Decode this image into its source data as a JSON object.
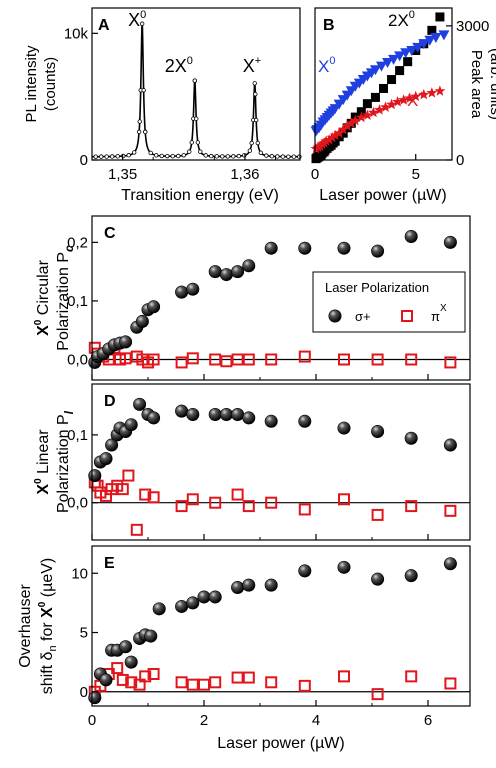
{
  "chart_data": [
    {
      "panel": "A",
      "type": "line",
      "xlabel": "Transition energy (eV)",
      "ylabel": "PL intensity",
      "ylabel2": "(counts)",
      "xticks": [
        "1,35",
        "1,36"
      ],
      "xtick_values": [
        1.35,
        1.36
      ],
      "yticks": [
        "0",
        "10k"
      ],
      "ytick_values": [
        0,
        10000
      ],
      "xlim": [
        1.3475,
        1.3645
      ],
      "ylim": [
        0,
        12000
      ],
      "peaks": [
        {
          "label": "X",
          "sup": "0",
          "x": 1.3516,
          "height": 10500,
          "width": 0.00012
        },
        {
          "label": "2X",
          "sup": "0",
          "x": 1.3559,
          "height": 6000,
          "width": 0.00012
        },
        {
          "label": "X",
          "sup": "+",
          "x": 1.3608,
          "height": 5800,
          "width": 0.00012
        }
      ],
      "baseline": 250
    },
    {
      "panel": "B",
      "type": "scatter",
      "xlabel": "Laser power (µW)",
      "ylabel_right": "Peak area",
      "ylabel_right2": "(arb. units)",
      "xticks": [
        "0",
        "5"
      ],
      "xtick_values": [
        0,
        5
      ],
      "yticks": [
        "0",
        "3000"
      ],
      "ytick_values": [
        0,
        3000
      ],
      "xlim": [
        0,
        6.8
      ],
      "ylim": [
        0,
        3400
      ],
      "series": [
        {
          "name": "2X",
          "sup": "0",
          "color": "#000000",
          "marker": "square",
          "x": [
            0.05,
            0.1,
            0.15,
            0.2,
            0.3,
            0.35,
            0.45,
            0.5,
            0.6,
            0.7,
            0.8,
            0.9,
            1.0,
            1.2,
            1.4,
            1.6,
            1.8,
            2.0,
            2.3,
            2.6,
            3.0,
            3.4,
            3.8,
            4.2,
            4.6,
            5.0,
            5.4,
            5.8,
            6.2
          ],
          "y": [
            30,
            50,
            60,
            80,
            110,
            150,
            180,
            220,
            260,
            300,
            330,
            380,
            420,
            520,
            600,
            720,
            820,
            960,
            1080,
            1260,
            1400,
            1600,
            1800,
            2000,
            2200,
            2450,
            2600,
            2900,
            3200
          ]
        },
        {
          "name": "X",
          "sup": "0",
          "color": "#1f3fe0",
          "marker": "triangle-down",
          "x": [
            0.05,
            0.1,
            0.2,
            0.3,
            0.4,
            0.5,
            0.6,
            0.7,
            0.8,
            0.9,
            1.0,
            1.2,
            1.4,
            1.6,
            1.8,
            2.0,
            2.2,
            2.4,
            2.6,
            2.8,
            3.0,
            3.3,
            3.6,
            3.9,
            4.2,
            4.5,
            4.8,
            5.1,
            5.4,
            5.7,
            6.0,
            6.4
          ],
          "y": [
            650,
            680,
            720,
            780,
            850,
            900,
            950,
            1000,
            1050,
            1100,
            1150,
            1250,
            1350,
            1450,
            1550,
            1650,
            1720,
            1800,
            1880,
            1950,
            2020,
            2100,
            2180,
            2250,
            2330,
            2400,
            2450,
            2520,
            2600,
            2680,
            2740,
            2800
          ]
        },
        {
          "name": "X",
          "sup": "+",
          "color": "#e0161c",
          "marker": "star",
          "x": [
            0.05,
            0.15,
            0.25,
            0.35,
            0.45,
            0.55,
            0.7,
            0.85,
            1.0,
            1.2,
            1.4,
            1.6,
            1.8,
            2.0,
            2.3,
            2.6,
            2.9,
            3.2,
            3.5,
            3.8,
            4.1,
            4.4,
            4.7,
            5.0,
            5.4,
            5.8,
            6.2
          ],
          "y": [
            250,
            280,
            300,
            350,
            380,
            420,
            450,
            500,
            550,
            600,
            680,
            760,
            820,
            880,
            950,
            1000,
            1060,
            1120,
            1180,
            1240,
            1300,
            1340,
            1380,
            1420,
            1460,
            1500,
            1540
          ]
        }
      ]
    },
    {
      "panel": "C",
      "type": "scatter",
      "ylabel_line1": "Polarization P",
      "ylabel_line1_sub": "c",
      "ylabel_bold": "X",
      "ylabel_bold_sup": "0",
      "ylabel_rest": " Circular",
      "yticks": [
        "0,0",
        "0,1",
        "0,2"
      ],
      "ytick_values": [
        0,
        0.1,
        0.2
      ],
      "xlim": [
        0,
        6.75
      ],
      "ylim": [
        -0.035,
        0.245
      ],
      "legend": {
        "title": "Laser Polarization",
        "entries": [
          {
            "label": "σ+",
            "marker": "sphere"
          },
          {
            "label": "π",
            "sup": "X",
            "marker": "open-square"
          }
        ]
      },
      "series": [
        {
          "name": "σ+",
          "marker": "sphere",
          "x": [
            0.05,
            0.1,
            0.2,
            0.3,
            0.4,
            0.5,
            0.6,
            0.8,
            0.9,
            1.0,
            1.1,
            1.6,
            1.8,
            2.2,
            2.4,
            2.6,
            2.8,
            3.2,
            3.8,
            4.5,
            5.1,
            5.7,
            6.4
          ],
          "y": [
            -0.005,
            0.005,
            0.01,
            0.018,
            0.025,
            0.028,
            0.03,
            0.055,
            0.065,
            0.085,
            0.09,
            0.115,
            0.12,
            0.15,
            0.145,
            0.15,
            0.16,
            0.19,
            0.19,
            0.19,
            0.185,
            0.21,
            0.2
          ]
        },
        {
          "name": "π",
          "sup": "X",
          "marker": "open-square",
          "x": [
            0.05,
            0.1,
            0.2,
            0.3,
            0.4,
            0.5,
            0.6,
            0.8,
            0.9,
            1.0,
            1.1,
            1.6,
            1.8,
            2.2,
            2.4,
            2.6,
            2.8,
            3.2,
            3.8,
            4.5,
            5.1,
            5.7,
            6.4
          ],
          "y": [
            0.02,
            0.01,
            0.005,
            0.0,
            0.02,
            0.0,
            0.002,
            0.005,
            0.0,
            -0.005,
            0.0,
            -0.005,
            0.002,
            0.0,
            -0.003,
            0.0,
            0.0,
            0.0,
            0.005,
            0.0,
            0.0,
            0.0,
            -0.005
          ]
        }
      ]
    },
    {
      "panel": "D",
      "type": "scatter",
      "ylabel_line1": "Polarization P",
      "ylabel_line1_sub": "l",
      "ylabel_bold": "X",
      "ylabel_bold_sup": "0",
      "ylabel_rest": " Linear",
      "yticks": [
        "0,0",
        "0,1"
      ],
      "ytick_values": [
        0,
        0.1
      ],
      "xlim": [
        0,
        6.75
      ],
      "ylim": [
        -0.055,
        0.175
      ],
      "series": [
        {
          "name": "σ+",
          "marker": "sphere",
          "x": [
            0.05,
            0.15,
            0.25,
            0.35,
            0.45,
            0.5,
            0.6,
            0.7,
            0.85,
            1.0,
            1.1,
            1.6,
            1.8,
            2.2,
            2.4,
            2.6,
            2.8,
            3.2,
            3.8,
            4.5,
            5.1,
            5.7,
            6.4
          ],
          "y": [
            0.04,
            0.06,
            0.065,
            0.085,
            0.1,
            0.11,
            0.105,
            0.115,
            0.145,
            0.13,
            0.125,
            0.135,
            0.13,
            0.13,
            0.13,
            0.13,
            0.125,
            0.12,
            0.12,
            0.11,
            0.105,
            0.095,
            0.085
          ]
        },
        {
          "name": "π",
          "sup": "X",
          "marker": "open-square",
          "x": [
            0.05,
            0.1,
            0.15,
            0.25,
            0.35,
            0.45,
            0.55,
            0.65,
            0.8,
            0.95,
            1.1,
            1.6,
            1.8,
            2.2,
            2.6,
            2.8,
            3.2,
            3.8,
            4.5,
            5.1,
            5.7,
            6.4
          ],
          "y": [
            0.03,
            0.025,
            0.015,
            0.01,
            0.02,
            0.025,
            0.02,
            0.04,
            -0.04,
            0.012,
            0.008,
            -0.005,
            0.005,
            0.0,
            0.012,
            -0.005,
            0.0,
            -0.01,
            0.005,
            -0.018,
            -0.005,
            -0.012
          ]
        }
      ]
    },
    {
      "panel": "E",
      "type": "scatter",
      "ylabel_line1": "Overhauser",
      "ylabel_line2_prefix": "shift δ",
      "ylabel_line2_sub": "n",
      "ylabel_line2_mid": " for ",
      "ylabel_bold": "X",
      "ylabel_bold_sup": "0",
      "ylabel_rest": " (µeV)",
      "xlabel": "Laser power (µW)",
      "yticks": [
        "0",
        "5",
        "10"
      ],
      "ytick_values": [
        0,
        5,
        10
      ],
      "xticks": [
        "0",
        "2",
        "4",
        "6"
      ],
      "xtick_values": [
        0,
        2,
        4,
        6
      ],
      "xlim": [
        0,
        6.75
      ],
      "ylim": [
        -1.2,
        12.3
      ],
      "series": [
        {
          "name": "σ+",
          "marker": "sphere",
          "x": [
            0.05,
            0.15,
            0.25,
            0.35,
            0.45,
            0.6,
            0.7,
            0.85,
            0.95,
            1.05,
            1.2,
            1.6,
            1.8,
            2.0,
            2.2,
            2.6,
            2.8,
            3.2,
            3.8,
            4.5,
            5.1,
            5.7,
            6.4
          ],
          "y": [
            -0.5,
            1.5,
            1.0,
            3.5,
            3.5,
            3.8,
            2.5,
            4.5,
            4.8,
            4.7,
            7.0,
            7.2,
            7.5,
            8.0,
            8.0,
            8.8,
            9.0,
            9.0,
            10.2,
            10.5,
            9.5,
            9.8,
            10.8
          ]
        },
        {
          "name": "π",
          "sup": "X",
          "marker": "open-square",
          "x": [
            0.05,
            0.15,
            0.3,
            0.45,
            0.55,
            0.7,
            0.85,
            0.95,
            1.1,
            1.6,
            1.8,
            2.0,
            2.2,
            2.6,
            2.8,
            3.2,
            3.8,
            4.5,
            5.1,
            5.7,
            6.4
          ],
          "y": [
            0.0,
            0.5,
            1.5,
            2.0,
            1.0,
            0.8,
            0.6,
            1.3,
            1.5,
            0.8,
            0.6,
            0.6,
            0.8,
            1.2,
            1.2,
            0.8,
            0.5,
            1.3,
            -0.2,
            1.3,
            0.7
          ]
        }
      ]
    }
  ]
}
